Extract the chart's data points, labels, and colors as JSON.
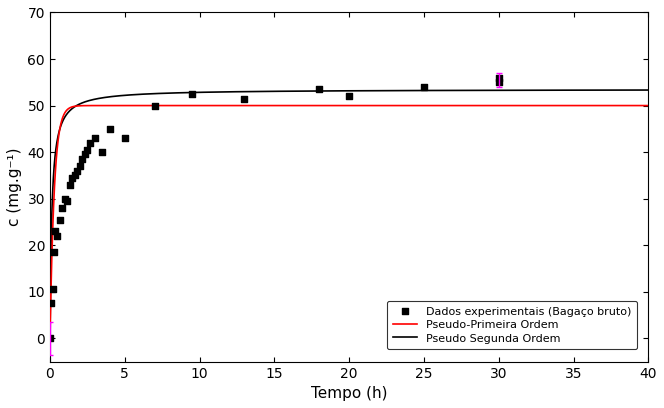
{
  "exp_x": [
    0,
    0.08,
    0.17,
    0.25,
    0.33,
    0.5,
    0.67,
    0.83,
    1.0,
    1.17,
    1.33,
    1.5,
    1.67,
    1.83,
    2.0,
    2.17,
    2.33,
    2.5,
    2.67,
    3.0,
    3.5,
    4.0,
    5.0,
    7.0,
    9.5,
    13.0,
    18.0,
    20.0,
    25.0,
    30.0,
    30.0
  ],
  "exp_y": [
    0,
    7.5,
    10.5,
    18.5,
    23.0,
    22.0,
    25.5,
    28.0,
    30.0,
    29.5,
    33.0,
    34.5,
    35.0,
    36.0,
    37.0,
    38.5,
    39.5,
    40.5,
    42.0,
    43.0,
    40.0,
    45.0,
    43.0,
    50.0,
    52.5,
    51.5,
    53.5,
    52.0,
    54.0,
    55.0,
    56.0
  ],
  "err0_x": 0,
  "err0_ymid": 0,
  "err0_yerr": 3.5,
  "err30_x": 30,
  "err30_ymid": 55.5,
  "err30_yerr": 1.5,
  "pfo_qe": 50.0,
  "pfo_k1": 3.5,
  "pso_qe": 53.5,
  "pso_k2": 0.15,
  "xlim": [
    0,
    40
  ],
  "ylim": [
    -5,
    70
  ],
  "xticks": [
    0,
    5,
    10,
    15,
    20,
    25,
    30,
    35,
    40
  ],
  "yticks": [
    0,
    10,
    20,
    30,
    40,
    50,
    60,
    70
  ],
  "xlabel": "Tempo (h)",
  "ylabel": "c (mg.g⁻¹)",
  "legend_labels": [
    "Dados experimentais (Bagaço bruto)",
    "Pseudo-Primeira Ordem",
    "Pseudo Segunda Ordem"
  ],
  "color_pfo": "#ff0000",
  "color_pso": "#000000",
  "color_exp": "#000000",
  "color_erro": "#ff00ff",
  "background_color": "#ffffff",
  "figsize": [
    6.64,
    4.08
  ],
  "dpi": 100
}
